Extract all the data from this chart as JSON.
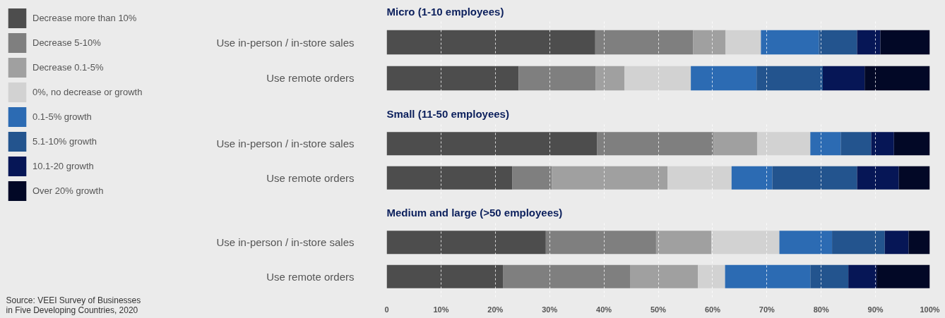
{
  "chart_data": [
    {
      "type": "bar",
      "orientation": "horizontal",
      "stacked": true,
      "title": "Micro (1-10 employees)",
      "categories": [
        "Use in-person / in-store sales",
        "Use remote orders"
      ],
      "series": [
        {
          "name": "Decrease more than 10%",
          "color": "#4d4d4d",
          "values": [
            38.4,
            24.3
          ]
        },
        {
          "name": "Decrease 5-10%",
          "color": "#7f7f7f",
          "values": [
            18.0,
            14.2
          ]
        },
        {
          "name": "Decrease 0.1-5%",
          "color": "#a0a0a0",
          "values": [
            6.0,
            5.3
          ]
        },
        {
          "name": "0%, no decrease or growth",
          "color": "#d2d2d2",
          "values": [
            6.5,
            12.2
          ]
        },
        {
          "name": "0.1-5% growth",
          "color": "#2c6bb3",
          "values": [
            10.7,
            12.1
          ]
        },
        {
          "name": "5.1-10% growth",
          "color": "#23548e",
          "values": [
            7.0,
            12.2
          ]
        },
        {
          "name": "10.1-20 growth",
          "color": "#061656",
          "values": [
            4.3,
            7.7
          ]
        },
        {
          "name": "Over 20% growth",
          "color": "#020826",
          "values": [
            9.1,
            12.0
          ]
        }
      ],
      "xlim": [
        0,
        100
      ],
      "xticks": [
        {
          "value": 10,
          "label": "10%"
        },
        {
          "value": 20,
          "label": "20%"
        },
        {
          "value": 30,
          "label": "30%"
        },
        {
          "value": 40,
          "label": "40%"
        },
        {
          "value": 50,
          "label": "50%"
        },
        {
          "value": 60,
          "label": "60%"
        },
        {
          "value": 70,
          "label": "70%"
        },
        {
          "value": 80,
          "label": "80%"
        },
        {
          "value": 90,
          "label": "90%"
        }
      ],
      "grid": "x",
      "legend": "left",
      "tick_labels": "y",
      "annotations": [
        "Source: VEEI Survey of Businesses in Five Developing Countries, 2020"
      ]
    },
    {
      "type": "bar",
      "orientation": "horizontal",
      "stacked": true,
      "title": "Small (11-50 employees)",
      "categories": [
        "Use in-person / in-store sales",
        "Use remote orders"
      ],
      "series": [
        {
          "color": "#4d4d4d",
          "values": [
            38.7,
            23.1
          ]
        },
        {
          "color": "#7f7f7f",
          "values": [
            21.5,
            7.3
          ]
        },
        {
          "color": "#a0a0a0",
          "values": [
            8.0,
            21.3
          ]
        },
        {
          "color": "#d2d2d2",
          "values": [
            9.8,
            11.8
          ]
        },
        {
          "color": "#2c6bb3",
          "values": [
            5.6,
            7.5
          ]
        },
        {
          "color": "#23548e",
          "values": [
            5.6,
            15.6
          ]
        },
        {
          "color": "#061656",
          "values": [
            4.2,
            7.7
          ]
        },
        {
          "color": "#020826",
          "values": [
            6.6,
            5.7
          ]
        }
      ],
      "xlim": [
        0,
        100
      ],
      "xticks": [
        {
          "value": 10,
          "label": "10%"
        },
        {
          "value": 20,
          "label": "20%"
        },
        {
          "value": 30,
          "label": "30%"
        },
        {
          "value": 40,
          "label": "40%"
        },
        {
          "value": 50,
          "label": "50%"
        },
        {
          "value": 60,
          "label": "60%"
        },
        {
          "value": 70,
          "label": "70%"
        },
        {
          "value": 80,
          "label": "80%"
        },
        {
          "value": 90,
          "label": "90%"
        }
      ],
      "grid": "x",
      "tick_labels": "y"
    },
    {
      "type": "bar",
      "orientation": "horizontal",
      "stacked": true,
      "title": "Medium and large (>50 employees)",
      "categories": [
        "Use in-person / in-store sales",
        "Use remote orders"
      ],
      "series": [
        {
          "color": "#4d4d4d",
          "values": [
            29.3,
            21.4
          ]
        },
        {
          "color": "#7f7f7f",
          "values": [
            20.3,
            23.4
          ]
        },
        {
          "color": "#a0a0a0",
          "values": [
            10.2,
            12.5
          ]
        },
        {
          "color": "#d2d2d2",
          "values": [
            12.5,
            5.0
          ]
        },
        {
          "color": "#2c6bb3",
          "values": [
            9.7,
            15.7
          ]
        },
        {
          "color": "#23548e",
          "values": [
            9.7,
            7.0
          ]
        },
        {
          "color": "#061656",
          "values": [
            4.4,
            5.2
          ]
        },
        {
          "color": "#020826",
          "values": [
            3.9,
            9.8
          ]
        }
      ],
      "xlim": [
        0,
        100
      ],
      "xticks": [
        0,
        {
          "value": 10,
          "label": "10%"
        },
        {
          "value": 20,
          "label": "20%"
        },
        {
          "value": 30,
          "label": "30%"
        },
        {
          "value": 40,
          "label": "40%"
        },
        {
          "value": 50,
          "label": "50%"
        },
        {
          "value": 60,
          "label": "60%"
        },
        {
          "value": 70,
          "label": "70%"
        },
        {
          "value": 80,
          "label": "80%"
        },
        {
          "value": 90,
          "label": "90%"
        },
        {
          "value": 100,
          "label": "100%"
        }
      ],
      "grid": "x"
    }
  ]
}
